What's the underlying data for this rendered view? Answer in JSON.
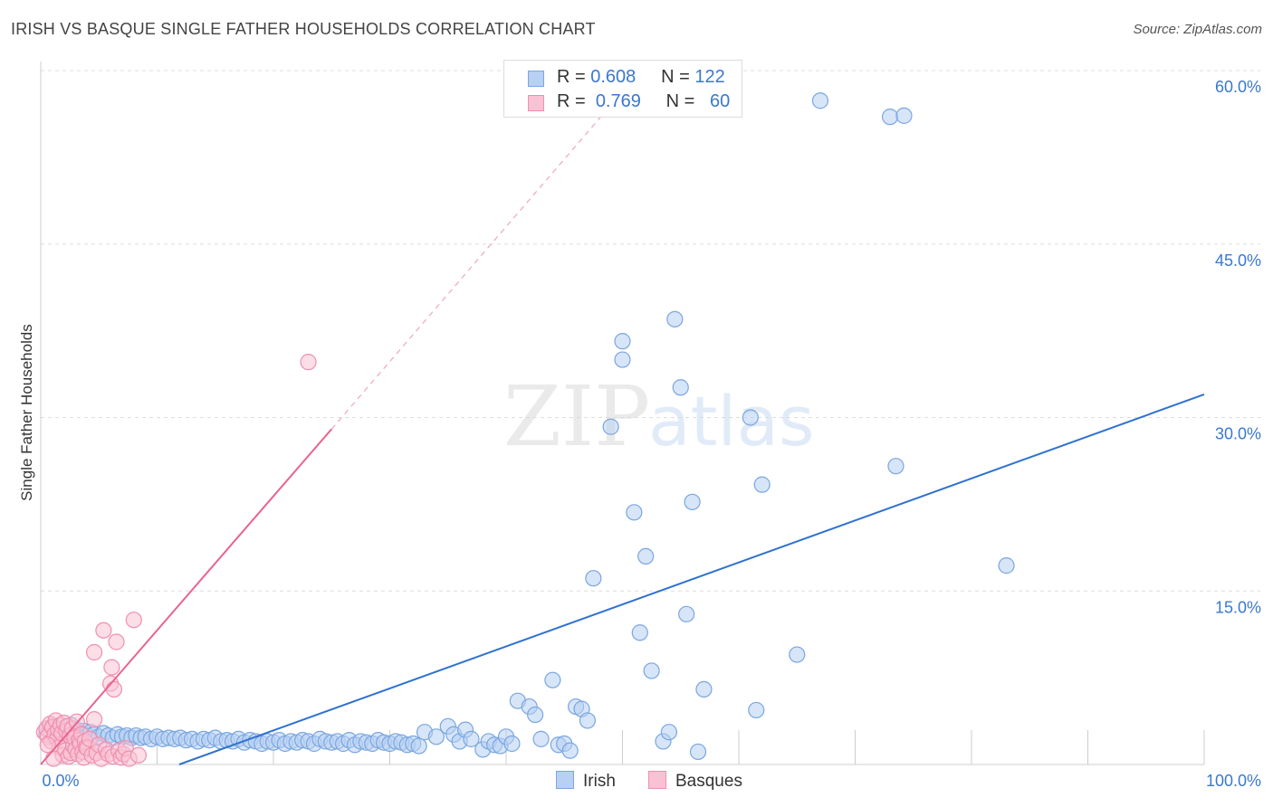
{
  "header": {
    "title": "IRISH VS BASQUE SINGLE FATHER HOUSEHOLDS CORRELATION CHART",
    "source": "Source: ZipAtlas.com"
  },
  "watermark": {
    "zip": "ZIP",
    "atlas": "atlas"
  },
  "colors": {
    "irish_fill": "#b7d0f3",
    "irish_stroke": "#7aa6e0",
    "irish_line": "#2f72cf",
    "basque_fill": "#f9c2d4",
    "basque_stroke": "#ef8fb0",
    "basque_line": "#e8648f",
    "axis_text": "#3a78d0",
    "grid": "#dddddd"
  },
  "legend_stats": {
    "irish": {
      "r_label": "R =",
      "r_value": "0.608",
      "n_label": "N =",
      "n_value": "122"
    },
    "basques": {
      "r_label": "R =",
      "r_value": "0.769",
      "n_label": "N =",
      "n_value": "60"
    }
  },
  "bottom_legend": {
    "irish": "Irish",
    "basques": "Basques"
  },
  "chart_data": {
    "type": "scatter",
    "title": "IRISH VS BASQUE SINGLE FATHER HOUSEHOLDS CORRELATION CHART",
    "xlabel": "",
    "ylabel": "Single Father Households",
    "xlim": [
      0,
      100
    ],
    "ylim": [
      0,
      60
    ],
    "x_tick_labels": [
      "0.0%",
      "100.0%"
    ],
    "y_ticks": [
      15,
      30,
      45,
      60
    ],
    "y_tick_labels": [
      "15.0%",
      "30.0%",
      "45.0%",
      "60.0%"
    ],
    "grid": true,
    "series": [
      {
        "name": "Irish",
        "r": 0.608,
        "n": 122,
        "trend": {
          "x": [
            11.9,
            100
          ],
          "y": [
            0,
            32.0
          ]
        },
        "points": [
          [
            0.5,
            2.6
          ],
          [
            0.8,
            3.0
          ],
          [
            1.0,
            3.3
          ],
          [
            1.2,
            2.8
          ],
          [
            1.5,
            3.1
          ],
          [
            1.8,
            2.7
          ],
          [
            2.0,
            3.2
          ],
          [
            2.3,
            2.9
          ],
          [
            2.6,
            3.4
          ],
          [
            2.8,
            2.6
          ],
          [
            3.1,
            3.0
          ],
          [
            3.4,
            2.7
          ],
          [
            3.7,
            2.9
          ],
          [
            4.0,
            2.5
          ],
          [
            4.3,
            2.8
          ],
          [
            4.6,
            2.6
          ],
          [
            5.0,
            2.4
          ],
          [
            5.4,
            2.7
          ],
          [
            5.8,
            2.5
          ],
          [
            6.2,
            2.3
          ],
          [
            6.6,
            2.6
          ],
          [
            7.0,
            2.4
          ],
          [
            7.4,
            2.5
          ],
          [
            7.8,
            2.3
          ],
          [
            8.2,
            2.5
          ],
          [
            8.6,
            2.3
          ],
          [
            9.0,
            2.4
          ],
          [
            9.5,
            2.2
          ],
          [
            10.0,
            2.4
          ],
          [
            10.5,
            2.2
          ],
          [
            11.0,
            2.3
          ],
          [
            11.5,
            2.2
          ],
          [
            12.0,
            2.3
          ],
          [
            12.5,
            2.1
          ],
          [
            13.0,
            2.2
          ],
          [
            13.5,
            2.0
          ],
          [
            14.0,
            2.2
          ],
          [
            14.5,
            2.1
          ],
          [
            15.0,
            2.3
          ],
          [
            15.5,
            2.0
          ],
          [
            16.0,
            2.1
          ],
          [
            16.5,
            2.0
          ],
          [
            17.0,
            2.2
          ],
          [
            17.5,
            1.9
          ],
          [
            18.0,
            2.1
          ],
          [
            18.5,
            2.0
          ],
          [
            19.0,
            1.8
          ],
          [
            19.5,
            2.0
          ],
          [
            20.0,
            1.9
          ],
          [
            20.5,
            2.1
          ],
          [
            21.0,
            1.8
          ],
          [
            21.5,
            2.0
          ],
          [
            22.0,
            1.9
          ],
          [
            22.5,
            2.1
          ],
          [
            23.0,
            2.0
          ],
          [
            23.5,
            1.8
          ],
          [
            24.0,
            2.2
          ],
          [
            24.5,
            2.0
          ],
          [
            25.0,
            1.9
          ],
          [
            25.5,
            2.0
          ],
          [
            26.0,
            1.8
          ],
          [
            26.5,
            2.1
          ],
          [
            27.0,
            1.7
          ],
          [
            27.5,
            2.0
          ],
          [
            28.0,
            1.9
          ],
          [
            28.5,
            1.8
          ],
          [
            29.0,
            2.1
          ],
          [
            29.5,
            1.9
          ],
          [
            30.0,
            1.8
          ],
          [
            30.5,
            2.0
          ],
          [
            31.0,
            1.9
          ],
          [
            31.5,
            1.7
          ],
          [
            32.0,
            1.8
          ],
          [
            32.5,
            1.6
          ],
          [
            33.0,
            2.8
          ],
          [
            34.0,
            2.4
          ],
          [
            35.0,
            3.3
          ],
          [
            35.5,
            2.6
          ],
          [
            36.0,
            2.0
          ],
          [
            36.5,
            3.0
          ],
          [
            37.0,
            2.2
          ],
          [
            38.0,
            1.3
          ],
          [
            38.5,
            2.0
          ],
          [
            39.0,
            1.7
          ],
          [
            39.5,
            1.6
          ],
          [
            40.0,
            2.4
          ],
          [
            40.5,
            1.8
          ],
          [
            41.0,
            5.5
          ],
          [
            42.0,
            5.0
          ],
          [
            42.5,
            4.3
          ],
          [
            43.0,
            2.2
          ],
          [
            44.0,
            7.3
          ],
          [
            44.5,
            1.7
          ],
          [
            45.0,
            1.8
          ],
          [
            45.5,
            1.2
          ],
          [
            46.0,
            5.0
          ],
          [
            46.5,
            4.8
          ],
          [
            47.0,
            3.8
          ],
          [
            47.5,
            16.1
          ],
          [
            49.0,
            29.2
          ],
          [
            50.0,
            36.6
          ],
          [
            50.0,
            35.0
          ],
          [
            51.0,
            21.8
          ],
          [
            51.5,
            11.4
          ],
          [
            52.0,
            18.0
          ],
          [
            52.5,
            8.1
          ],
          [
            53.5,
            2.0
          ],
          [
            54.0,
            2.8
          ],
          [
            54.5,
            38.5
          ],
          [
            55.0,
            32.6
          ],
          [
            55.5,
            13.0
          ],
          [
            56.0,
            22.7
          ],
          [
            56.5,
            1.1
          ],
          [
            57.0,
            6.5
          ],
          [
            61.0,
            30.0
          ],
          [
            61.5,
            4.7
          ],
          [
            62.0,
            24.2
          ],
          [
            65.0,
            9.5
          ],
          [
            67.0,
            57.4
          ],
          [
            73.0,
            56.0
          ],
          [
            74.2,
            56.1
          ],
          [
            73.5,
            25.8
          ],
          [
            83.0,
            17.2
          ]
        ]
      },
      {
        "name": "Basques",
        "r": 0.769,
        "n": 60,
        "trend": {
          "x": [
            0,
            25
          ],
          "y": [
            0,
            29.0
          ]
        },
        "trend_extension": {
          "x": [
            25,
            49
          ],
          "y": [
            29.0,
            57.0
          ]
        },
        "points": [
          [
            0.3,
            2.8
          ],
          [
            0.5,
            3.1
          ],
          [
            0.6,
            2.4
          ],
          [
            0.8,
            3.5
          ],
          [
            0.9,
            2.0
          ],
          [
            1.0,
            3.2
          ],
          [
            1.2,
            2.6
          ],
          [
            1.3,
            3.8
          ],
          [
            1.4,
            2.2
          ],
          [
            1.5,
            3.0
          ],
          [
            1.6,
            1.5
          ],
          [
            1.7,
            3.4
          ],
          [
            1.8,
            2.7
          ],
          [
            1.9,
            0.8
          ],
          [
            2.0,
            3.6
          ],
          [
            2.1,
            1.2
          ],
          [
            2.2,
            2.9
          ],
          [
            2.3,
            3.3
          ],
          [
            2.4,
            0.7
          ],
          [
            2.5,
            2.5
          ],
          [
            2.6,
            1.0
          ],
          [
            2.7,
            3.1
          ],
          [
            2.8,
            1.6
          ],
          [
            2.9,
            2.3
          ],
          [
            3.0,
            1.3
          ],
          [
            3.1,
            3.7
          ],
          [
            3.2,
            0.9
          ],
          [
            3.3,
            2.1
          ],
          [
            3.4,
            1.8
          ],
          [
            3.5,
            2.6
          ],
          [
            3.6,
            1.1
          ],
          [
            3.7,
            0.6
          ],
          [
            3.8,
            2.0
          ],
          [
            3.9,
            1.5
          ],
          [
            4.0,
            1.4
          ],
          [
            4.2,
            2.2
          ],
          [
            4.4,
            0.8
          ],
          [
            4.6,
            3.9
          ],
          [
            4.8,
            1.0
          ],
          [
            5.0,
            1.7
          ],
          [
            5.2,
            0.5
          ],
          [
            5.4,
            11.6
          ],
          [
            5.6,
            1.3
          ],
          [
            5.8,
            0.9
          ],
          [
            6.0,
            7.0
          ],
          [
            6.1,
            8.4
          ],
          [
            6.2,
            0.7
          ],
          [
            6.3,
            6.5
          ],
          [
            6.5,
            10.6
          ],
          [
            6.7,
            1.2
          ],
          [
            6.9,
            0.6
          ],
          [
            7.1,
            0.9
          ],
          [
            7.3,
            1.4
          ],
          [
            7.6,
            0.5
          ],
          [
            8.0,
            12.5
          ],
          [
            8.4,
            0.8
          ],
          [
            4.6,
            9.7
          ],
          [
            0.6,
            1.7
          ],
          [
            1.1,
            0.5
          ],
          [
            23.0,
            34.8
          ]
        ]
      }
    ]
  }
}
